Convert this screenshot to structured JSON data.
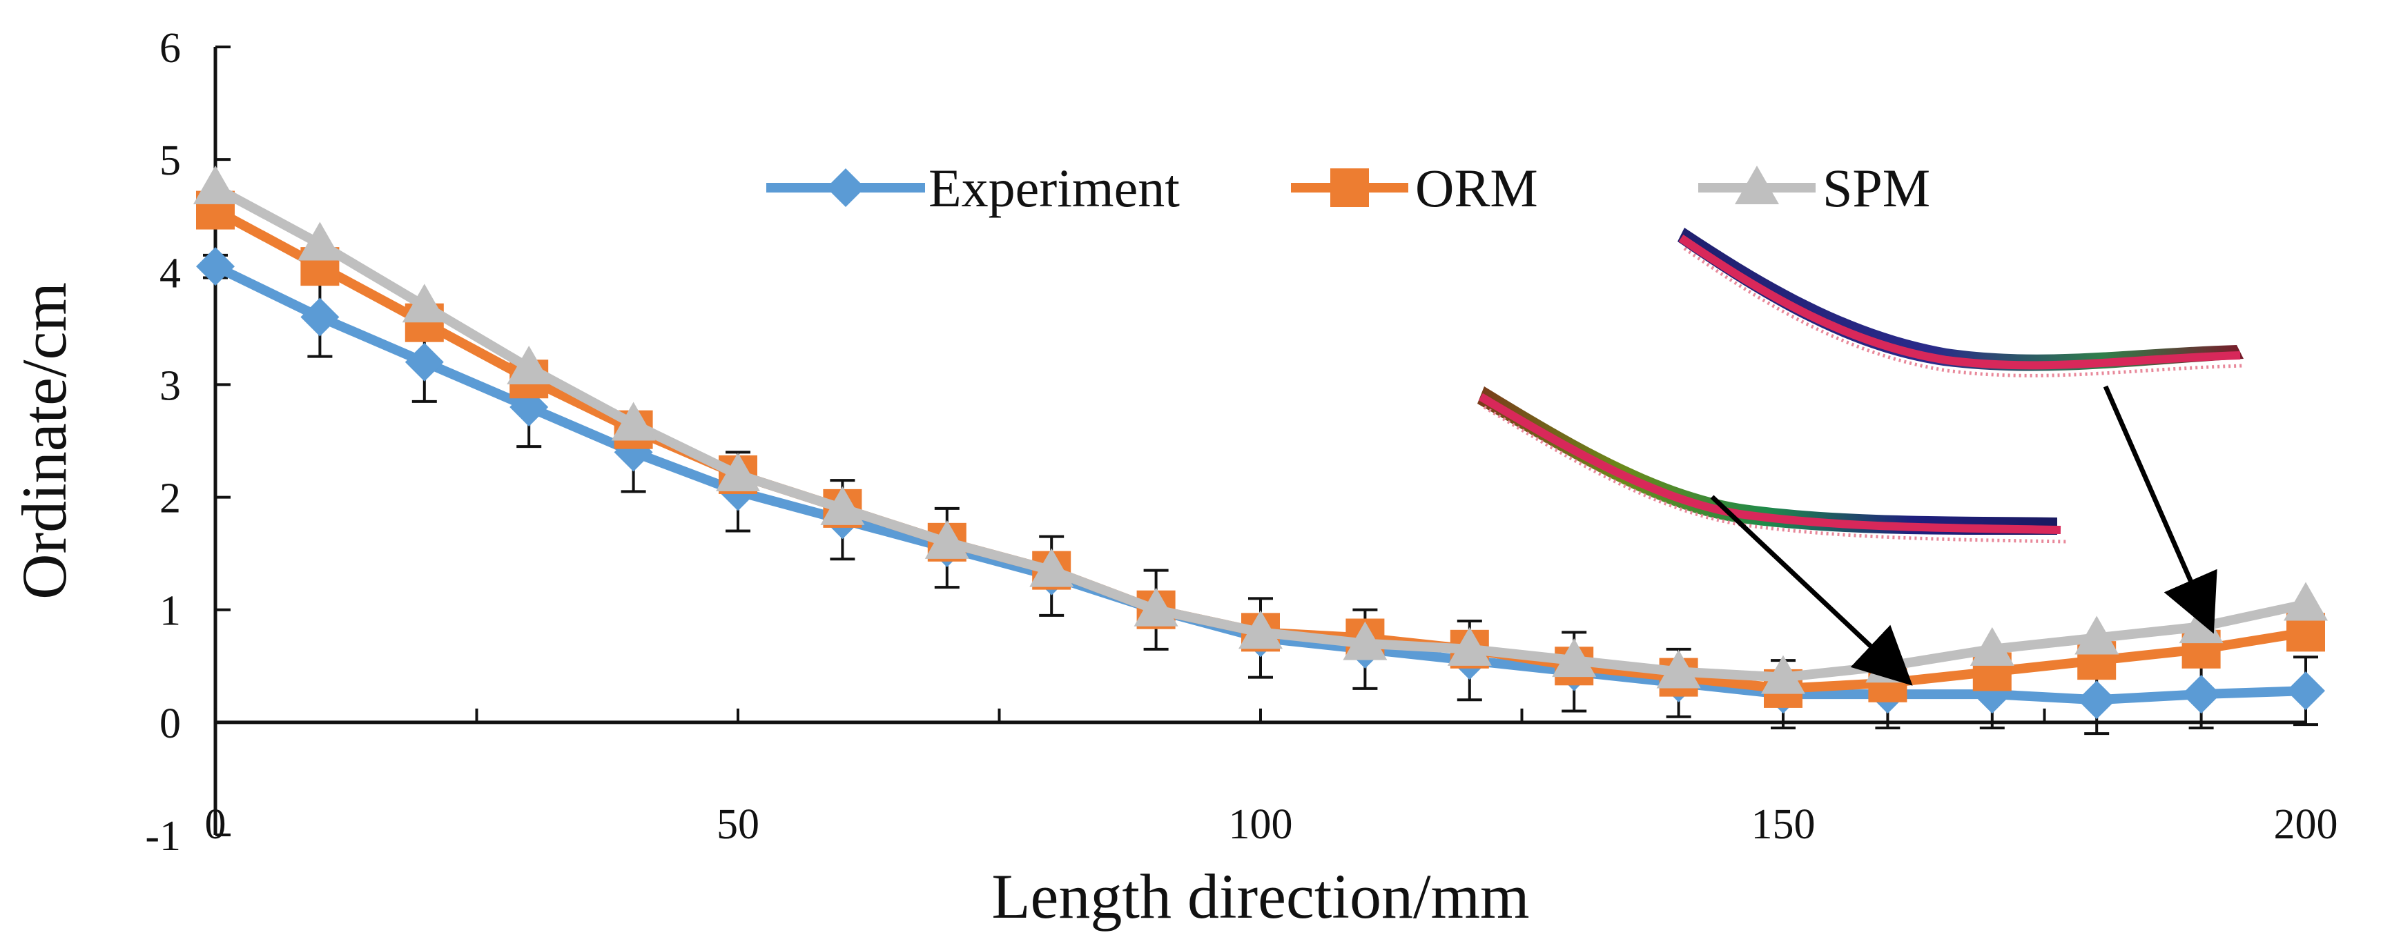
{
  "chart_data": {
    "type": "line",
    "xlabel": "Length direction/mm",
    "ylabel": "Ordinate/cm",
    "xlim": [
      0,
      200
    ],
    "ylim": [
      -1,
      6
    ],
    "xticks": [
      0,
      50,
      100,
      150,
      200
    ],
    "xtick_labels": [
      "0",
      "50",
      "100",
      "150",
      "200"
    ],
    "yticks": [
      -1,
      0,
      1,
      2,
      3,
      4,
      5,
      6
    ],
    "ytick_labels": [
      "-1",
      "0",
      "1",
      "2",
      "3",
      "4",
      "5",
      "6"
    ],
    "grid": false,
    "legend_position": "top-center",
    "x": [
      0,
      10,
      20,
      30,
      40,
      50,
      60,
      70,
      80,
      90,
      100,
      110,
      120,
      130,
      140,
      150,
      160,
      170,
      180,
      190,
      200
    ],
    "series": [
      {
        "name": "Experiment",
        "color": "#5b9bd5",
        "marker": "diamond",
        "values": [
          4.05,
          3.6,
          3.2,
          2.8,
          2.4,
          2.05,
          1.8,
          1.55,
          1.3,
          1.0,
          0.75,
          0.65,
          0.55,
          0.45,
          0.35,
          0.25,
          0.25,
          0.25,
          0.2,
          0.25,
          0.28
        ],
        "error": [
          0.1,
          0.35,
          0.35,
          0.35,
          0.35,
          0.35,
          0.35,
          0.35,
          0.35,
          0.35,
          0.35,
          0.35,
          0.35,
          0.35,
          0.3,
          0.3,
          0.3,
          0.3,
          0.3,
          0.3,
          0.3
        ]
      },
      {
        "name": "ORM",
        "color": "#ed7d31",
        "marker": "square",
        "values": [
          4.55,
          4.05,
          3.55,
          3.05,
          2.6,
          2.2,
          1.9,
          1.6,
          1.35,
          1.0,
          0.8,
          0.75,
          0.65,
          0.5,
          0.4,
          0.3,
          0.35,
          0.45,
          0.55,
          0.65,
          0.8
        ]
      },
      {
        "name": "SPM",
        "color": "#bfbfbf",
        "marker": "triangle",
        "values": [
          4.75,
          4.25,
          3.7,
          3.15,
          2.65,
          2.2,
          1.9,
          1.6,
          1.35,
          1.0,
          0.8,
          0.7,
          0.65,
          0.55,
          0.45,
          0.4,
          0.5,
          0.65,
          0.75,
          0.85,
          1.05
        ]
      }
    ],
    "annotations": [
      {
        "name": "deformed-part-inset-1",
        "description_hidden": true
      },
      {
        "name": "deformed-part-inset-2",
        "description_hidden": true
      }
    ]
  }
}
